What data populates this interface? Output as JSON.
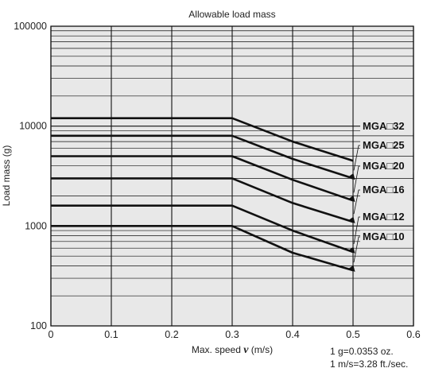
{
  "chart_data": {
    "type": "line",
    "title": "Allowable load mass",
    "xlabel_prefix": "Max. speed ",
    "xlabel_symbol": "ν",
    "xlabel_suffix": " (m/s)",
    "ylabel": "Load mass (g)",
    "xlim": [
      0,
      0.6
    ],
    "ylim": [
      100,
      100000
    ],
    "yscale": "log",
    "grid": true,
    "x_ticks": [
      "0",
      "0.1",
      "0.2",
      "0.3",
      "0.4",
      "0.5",
      "0.6"
    ],
    "y_ticks": [
      "100",
      "1000",
      "10000",
      "100000"
    ],
    "series": [
      {
        "name": "MGA□32",
        "x": [
          0,
          0.3,
          0.4,
          0.5
        ],
        "y": [
          12000,
          12000,
          7000,
          4500
        ]
      },
      {
        "name": "MGA□25",
        "x": [
          0,
          0.3,
          0.4,
          0.5
        ],
        "y": [
          8000,
          8000,
          4700,
          3000
        ]
      },
      {
        "name": "MGA□20",
        "x": [
          0,
          0.3,
          0.4,
          0.5
        ],
        "y": [
          5000,
          5000,
          2900,
          1800
        ]
      },
      {
        "name": "MGA□16",
        "x": [
          0,
          0.3,
          0.4,
          0.5
        ],
        "y": [
          3000,
          3000,
          1700,
          1100
        ]
      },
      {
        "name": "MGA□12",
        "x": [
          0,
          0.3,
          0.4,
          0.5
        ],
        "y": [
          1600,
          1600,
          900,
          550
        ]
      },
      {
        "name": "MGA□10",
        "x": [
          0,
          0.3,
          0.4,
          0.5
        ],
        "y": [
          1000,
          1000,
          540,
          360
        ]
      }
    ],
    "notes": [
      "1 g=0.0353 oz.",
      "1 m/s=3.28 ft./sec."
    ],
    "colors": {
      "background": "#e8e8e8",
      "lines": "#111111"
    }
  }
}
